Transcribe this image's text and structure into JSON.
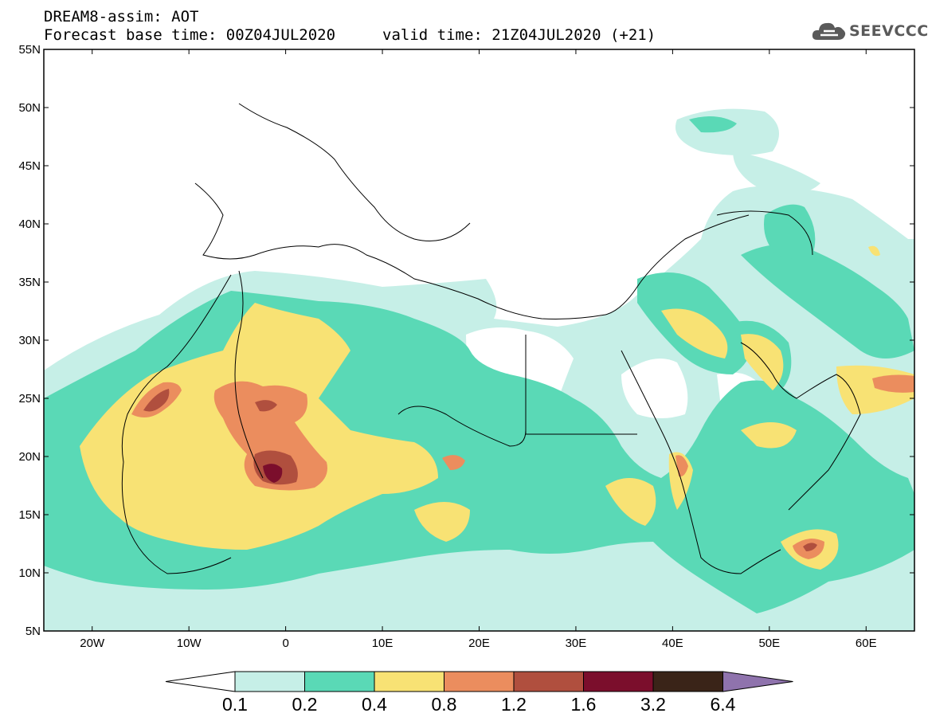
{
  "title": {
    "line1": "DREAM8-assim: AOT",
    "line2": "Forecast base time: 00Z04JUL2020",
    "valid": "valid time: 21Z04JUL2020 (+21)"
  },
  "logo": {
    "text": "SEEVCCC",
    "icon": "cloud-icon"
  },
  "map": {
    "lat_labels": [
      "55N",
      "50N",
      "45N",
      "40N",
      "35N",
      "30N",
      "25N",
      "20N",
      "15N",
      "10N",
      "5N"
    ],
    "lon_labels": [
      "20W",
      "10W",
      "0",
      "10E",
      "20E",
      "30E",
      "40E",
      "50E",
      "60E"
    ]
  },
  "colorbar": {
    "levels": [
      "0.1",
      "0.2",
      "0.4",
      "0.8",
      "1.2",
      "1.6",
      "3.2",
      "6.4"
    ],
    "colors": [
      "#c6efe7",
      "#5ad9b6",
      "#f8e274",
      "#eb8d5e",
      "#b04f3e",
      "#7b0e2c",
      "#3a2418",
      "#8f73ad"
    ]
  },
  "fields": {
    "aot_0_1": "#c6efe7",
    "aot_0_2": "#5ad9b6",
    "aot_0_4": "#f8e274",
    "aot_0_8": "#eb8d5e",
    "aot_1_2": "#b04f3e",
    "aot_1_6": "#7b0e2c"
  }
}
